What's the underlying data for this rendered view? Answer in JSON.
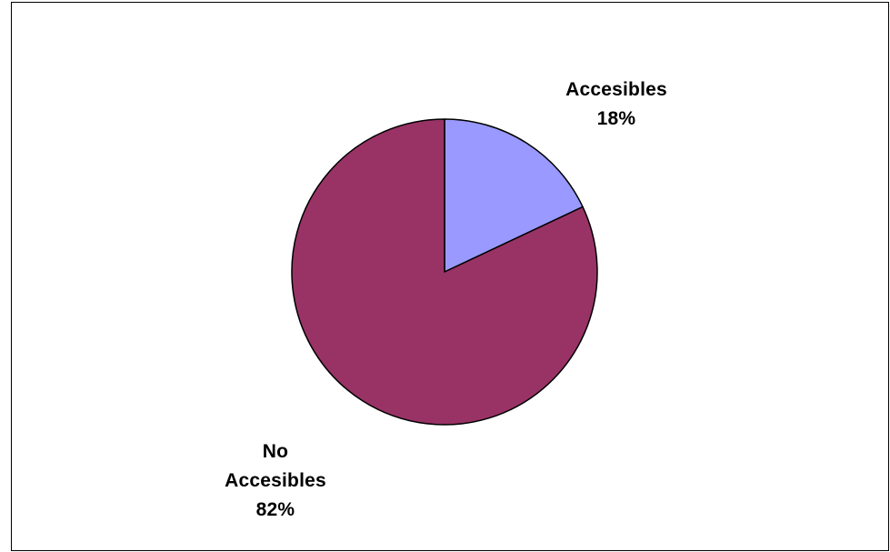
{
  "chart_data": {
    "type": "pie",
    "slices": [
      {
        "label_lines": [
          "Accesibles"
        ],
        "percent_text": "18%",
        "value": 18,
        "color": "#9999ff"
      },
      {
        "label_lines": [
          "No",
          "Accesibles"
        ],
        "percent_text": "82%",
        "value": 82,
        "color": "#993366"
      }
    ],
    "start_angle_deg": 0,
    "direction": "clockwise",
    "legend": "none"
  }
}
